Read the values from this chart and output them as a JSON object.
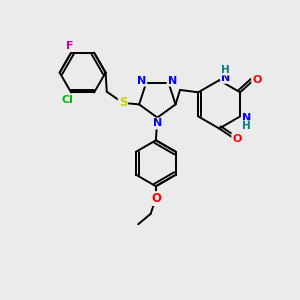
{
  "bg_color": "#ebebeb",
  "bond_color": "#000000",
  "atom_colors": {
    "N": "#0000ff",
    "O": "#ff0000",
    "S": "#cccc00",
    "Cl": "#00bb00",
    "F": "#bb00bb",
    "H": "#008080",
    "C": "#000000"
  },
  "figsize": [
    3.0,
    3.0
  ],
  "dpi": 100
}
